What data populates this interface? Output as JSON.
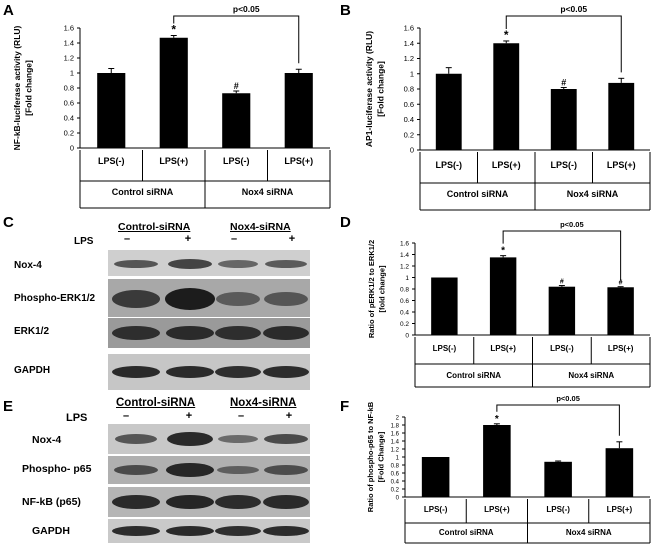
{
  "panels": {
    "A": "A",
    "B": "B",
    "C": "C",
    "D": "D",
    "E": "E",
    "F": "F"
  },
  "blot_C": {
    "group1": "Control-siRNA",
    "group2": "Nox4-siRNA",
    "lps_label": "LPS",
    "signs": [
      "–",
      "+",
      "–",
      "+"
    ],
    "rows": [
      "Nox-4",
      "Phospho-ERK1/2",
      "ERK1/2",
      "GAPDH"
    ]
  },
  "blot_E": {
    "group1": "Control-siRNA",
    "group2": "Nox4-siRNA",
    "lps_label": "LPS",
    "signs": [
      "–",
      "+",
      "–",
      "+"
    ],
    "rows": [
      "Nox-4",
      "Phospho- p65",
      "NF-kB (p65)",
      "GAPDH"
    ]
  },
  "chart_data": [
    {
      "id": "A",
      "type": "bar",
      "categories": [
        "LPS(-)",
        "LPS(+)",
        "LPS(-)",
        "LPS(+)"
      ],
      "groups": [
        "Control siRNA",
        "Nox4 siRNA"
      ],
      "values": [
        1.0,
        1.47,
        0.73,
        1.0
      ],
      "errors": [
        0.06,
        0.03,
        0.03,
        0.05
      ],
      "marks": [
        "",
        "*",
        "#",
        ""
      ],
      "ylabel": "NF-kB-luciferase activity (RLU)\n[Fold change]",
      "ylim": [
        0,
        1.6
      ],
      "ticks": [
        "0",
        "0.2",
        "0.4",
        "0.6",
        "0.8",
        "1",
        "1.2",
        "1.4",
        "1.6"
      ],
      "annotation": "p<0.05"
    },
    {
      "id": "B",
      "type": "bar",
      "categories": [
        "LPS(-)",
        "LPS(+)",
        "LPS(-)",
        "LPS(+)"
      ],
      "groups": [
        "Control siRNA",
        "Nox4 siRNA"
      ],
      "values": [
        1.0,
        1.4,
        0.8,
        0.88
      ],
      "errors": [
        0.08,
        0.03,
        0.02,
        0.06
      ],
      "marks": [
        "",
        "*",
        "#",
        ""
      ],
      "ylabel": "AP1-luciferase activity (RLU)\n[Fold change]",
      "ylim": [
        0,
        1.6
      ],
      "ticks": [
        "0",
        "0.2",
        "0.4",
        "0.6",
        "0.8",
        "1",
        "1.2",
        "1.4",
        "1.6"
      ],
      "annotation": "p<0.05"
    },
    {
      "id": "D",
      "type": "bar",
      "categories": [
        "LPS(-)",
        "LPS(+)",
        "LPS(-)",
        "LPS(+)"
      ],
      "groups": [
        "Control siRNA",
        "Nox4 siRNA"
      ],
      "values": [
        1.0,
        1.35,
        0.84,
        0.83
      ],
      "errors": [
        0.0,
        0.03,
        0.02,
        0.01
      ],
      "marks": [
        "",
        "*",
        "#",
        "#"
      ],
      "ylabel": "Ratio of pERK1/2 to ERK1/2\n[fold change]",
      "ylim": [
        0,
        1.6
      ],
      "ticks": [
        "0",
        "0.2",
        "0.4",
        "0.6",
        "0.8",
        "1",
        "1.2",
        "1.4",
        "1.6"
      ],
      "annotation": "p<0.05"
    },
    {
      "id": "F",
      "type": "bar",
      "categories": [
        "LPS(-)",
        "LPS(+)",
        "LPS(-)",
        "LPS(+)"
      ],
      "groups": [
        "Control siRNA",
        "Nox4 siRNA"
      ],
      "values": [
        1.0,
        1.8,
        0.88,
        1.22
      ],
      "errors": [
        0.0,
        0.03,
        0.02,
        0.16
      ],
      "marks": [
        "",
        "*",
        "",
        ""
      ],
      "ylabel": "Ratio of phospho-p65  to NF-kB\n[Fold Change]",
      "ylim": [
        0,
        2.0
      ],
      "ticks": [
        "0",
        "0.2",
        "0.4",
        "0.6",
        "0.8",
        "1",
        "1.2",
        "1.4",
        "1.6",
        "1.8",
        "2"
      ],
      "annotation": "p<0.05"
    }
  ]
}
